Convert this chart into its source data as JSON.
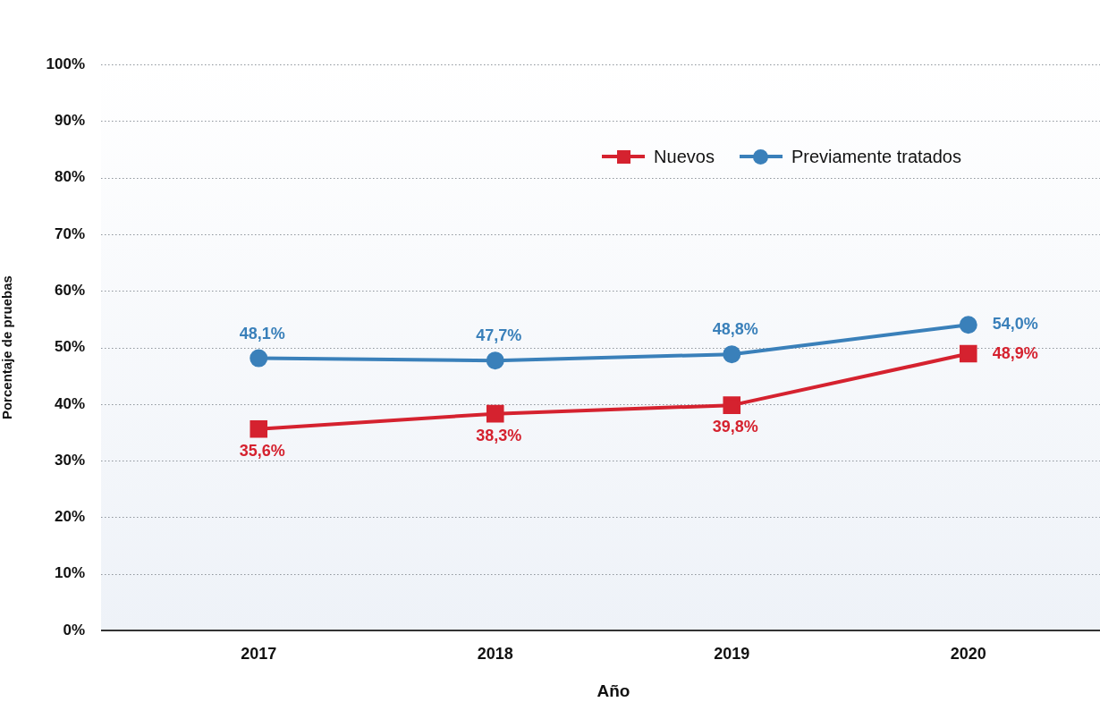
{
  "chart_data": {
    "type": "line",
    "xlabel": "Año",
    "ylabel": "Porcentaje de pruebas",
    "categories": [
      "2017",
      "2018",
      "2019",
      "2020"
    ],
    "series": [
      {
        "name": "Nuevos",
        "color": "#d5222f",
        "marker": "square",
        "values": [
          35.6,
          38.3,
          39.8,
          48.9
        ],
        "value_labels": [
          "35,6%",
          "38,3%",
          "39,8%",
          "48,9%"
        ]
      },
      {
        "name": "Previamente tratados",
        "color": "#3a80ba",
        "marker": "circle",
        "values": [
          48.1,
          47.7,
          48.8,
          54.0
        ],
        "value_labels": [
          "48,1%",
          "47,7%",
          "48,8%",
          "54,0%"
        ]
      }
    ],
    "ylim": [
      0,
      100
    ],
    "yticks": [
      {
        "value": 0,
        "label": "0%"
      },
      {
        "value": 10,
        "label": "10%"
      },
      {
        "value": 20,
        "label": "20%"
      },
      {
        "value": 30,
        "label": "30%"
      },
      {
        "value": 40,
        "label": "40%"
      },
      {
        "value": 50,
        "label": "50%"
      },
      {
        "value": 60,
        "label": "60%"
      },
      {
        "value": 70,
        "label": "70%"
      },
      {
        "value": 80,
        "label": "80%"
      },
      {
        "value": 90,
        "label": "90%"
      },
      {
        "value": 100,
        "label": "100%"
      }
    ],
    "grid": "y",
    "legend": "top right",
    "line_style": "solid"
  }
}
